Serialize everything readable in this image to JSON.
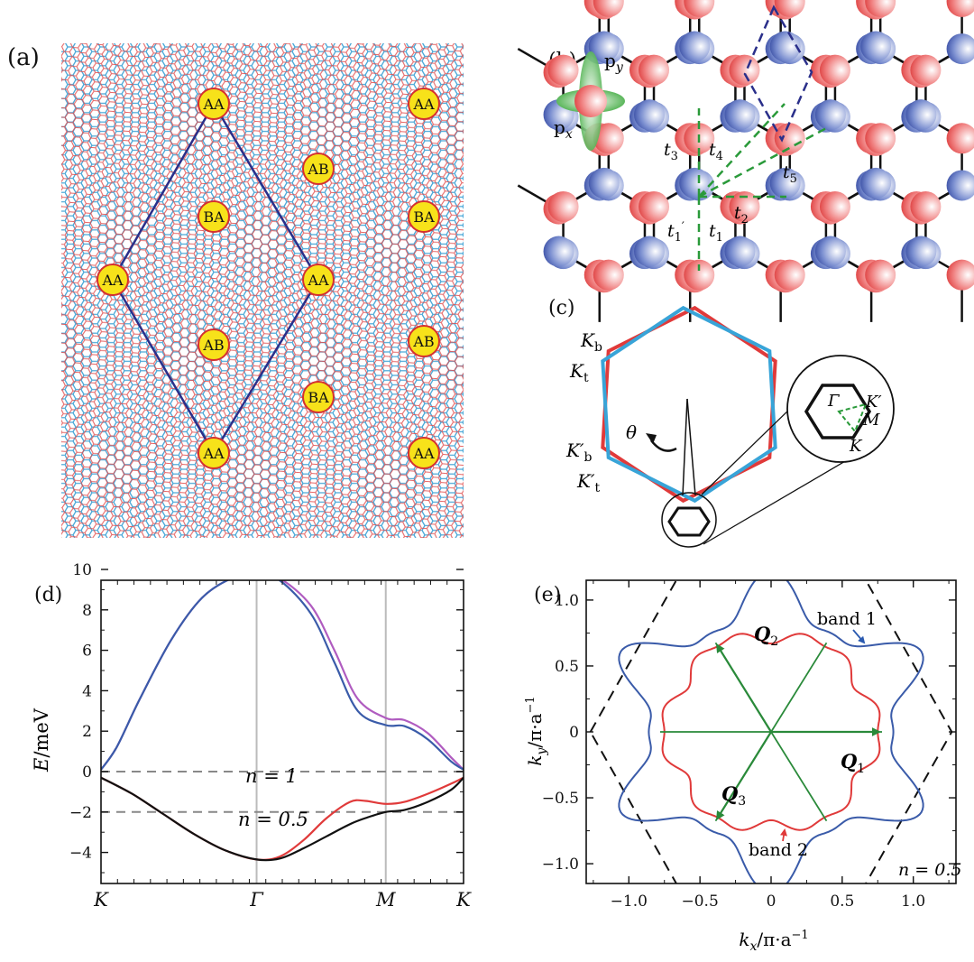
{
  "panels": {
    "a": {
      "label": "(a)",
      "stacking_labels": [
        {
          "id": "aa-top",
          "text": "AA"
        },
        {
          "id": "aa-top-right",
          "text": "AA"
        },
        {
          "id": "ab-upper",
          "text": "AB"
        },
        {
          "id": "ba-upper",
          "text": "BA"
        },
        {
          "id": "ba-upper-right",
          "text": "BA"
        },
        {
          "id": "aa-left",
          "text": "AA"
        },
        {
          "id": "aa-center",
          "text": "AA"
        },
        {
          "id": "ab-lower",
          "text": "AB"
        },
        {
          "id": "ab-lower-right",
          "text": "AB"
        },
        {
          "id": "ba-lower",
          "text": "BA"
        },
        {
          "id": "aa-bottom",
          "text": "AA"
        },
        {
          "id": "aa-bottom-right",
          "text": "AA"
        }
      ]
    },
    "b": {
      "label": "(b)",
      "orbital_py": "p",
      "orbital_py_sub": "y",
      "orbital_px": "p",
      "orbital_px_sub": "x",
      "hoppings": [
        "t",
        "3",
        "t",
        "4",
        "t",
        "5",
        "t",
        "2",
        "t",
        "1",
        "t",
        "1",
        "′"
      ]
    },
    "c": {
      "label": "(c)",
      "k_b": "K",
      "k_b_sub": "b",
      "k_t": "K",
      "k_t_sub": "t",
      "kp_b": "K′",
      "kp_b_sub": "b",
      "kp_t": "K′",
      "kp_t_sub": "t",
      "theta": "θ",
      "inset_gamma": "Γ",
      "inset_kp": "K′",
      "inset_m": "M",
      "inset_k": "K"
    },
    "d": {
      "label": "(d)",
      "ylabel_sym": "E",
      "ylabel_unit": "/meV",
      "n1": "n = 1",
      "n05": "n = 0.5"
    },
    "e": {
      "label": "(e)",
      "xlabel": "k",
      "xlabel_sub": "x",
      "xlabel_unit": "/π·a",
      "ylabel": "k",
      "ylabel_sub": "y",
      "ylabel_unit": "/π·a",
      "exp": "−1",
      "band1": "band 1",
      "band2": "band 2",
      "q1": "Q",
      "q1_sub": "1",
      "q2": "Q",
      "q2_sub": "2",
      "q3": "Q",
      "q3_sub": "3",
      "filling": "n = 0.5"
    }
  },
  "chart_data": [
    {
      "type": "line",
      "panel": "d",
      "title": "",
      "xlabel": "",
      "ylabel": "E/meV",
      "ylim": [
        -5,
        10
      ],
      "x_ticks": [
        "K",
        "Γ",
        "M",
        "K"
      ],
      "y_ticks": [
        "10",
        "8",
        "6",
        "4",
        "2",
        "0",
        "−2",
        "−4"
      ],
      "x_positions": [
        0,
        1,
        1.83,
        2.33
      ],
      "vertical_lines_at": [
        1,
        1.83
      ],
      "reference_lines": [
        {
          "y": 0,
          "label": "n = 1"
        },
        {
          "y": -2,
          "label": "n = 0.5"
        }
      ],
      "series": [
        {
          "color": "#b05cc0",
          "x": [
            0,
            0.1,
            0.25,
            0.45,
            0.65,
            0.85,
            1.0,
            1.15,
            1.35,
            1.5,
            1.65,
            1.83,
            1.95,
            2.1,
            2.25,
            2.33
          ],
          "values": [
            0.1,
            1.2,
            3.6,
            6.5,
            8.6,
            9.6,
            9.75,
            9.55,
            8.2,
            6.0,
            3.6,
            2.65,
            2.55,
            1.9,
            0.7,
            0.1
          ]
        },
        {
          "color": "#3a5ba9",
          "x": [
            0,
            0.1,
            0.25,
            0.45,
            0.65,
            0.85,
            1.0,
            1.15,
            1.35,
            1.5,
            1.65,
            1.83,
            1.95,
            2.1,
            2.25,
            2.33
          ],
          "values": [
            0.1,
            1.2,
            3.6,
            6.5,
            8.6,
            9.6,
            9.75,
            9.45,
            7.8,
            5.4,
            3.0,
            2.3,
            2.25,
            1.6,
            0.5,
            0.1
          ]
        },
        {
          "color": "#e03a3a",
          "x": [
            0,
            0.2,
            0.4,
            0.6,
            0.8,
            1.0,
            1.15,
            1.3,
            1.45,
            1.6,
            1.7,
            1.83,
            1.95,
            2.1,
            2.25,
            2.33
          ],
          "values": [
            -0.3,
            -1.1,
            -2.1,
            -3.1,
            -3.9,
            -4.35,
            -4.2,
            -3.4,
            -2.3,
            -1.5,
            -1.45,
            -1.6,
            -1.5,
            -1.1,
            -0.6,
            -0.3
          ]
        },
        {
          "color": "#111111",
          "x": [
            0,
            0.2,
            0.4,
            0.6,
            0.8,
            1.0,
            1.15,
            1.3,
            1.45,
            1.6,
            1.7,
            1.83,
            1.95,
            2.1,
            2.25,
            2.33
          ],
          "values": [
            -0.3,
            -1.1,
            -2.1,
            -3.1,
            -3.9,
            -4.35,
            -4.3,
            -3.8,
            -3.2,
            -2.6,
            -2.3,
            -2.0,
            -1.9,
            -1.5,
            -0.9,
            -0.3
          ]
        }
      ]
    },
    {
      "type": "line",
      "panel": "e",
      "title": "",
      "xlabel": "k_x/π·a^−1",
      "ylabel": "k_y/π·a^−1",
      "xlim": [
        -1.3,
        1.3
      ],
      "ylim": [
        -1.15,
        1.15
      ],
      "x_ticks": [
        "−1.0",
        "−0.5",
        "0",
        "0.5",
        "1.0"
      ],
      "y_ticks": [
        "1.0",
        "0.5",
        "0",
        "−0.5",
        "−1.0"
      ],
      "series": [
        {
          "color": "#3a5ba9",
          "shape": "band 1 fermi contour, six-pointed star"
        },
        {
          "color": "#e03a3a",
          "shape": "band 2 fermi contour, rounded hexagon"
        }
      ],
      "nesting_vectors": [
        "Q1",
        "Q2",
        "Q3"
      ]
    }
  ]
}
